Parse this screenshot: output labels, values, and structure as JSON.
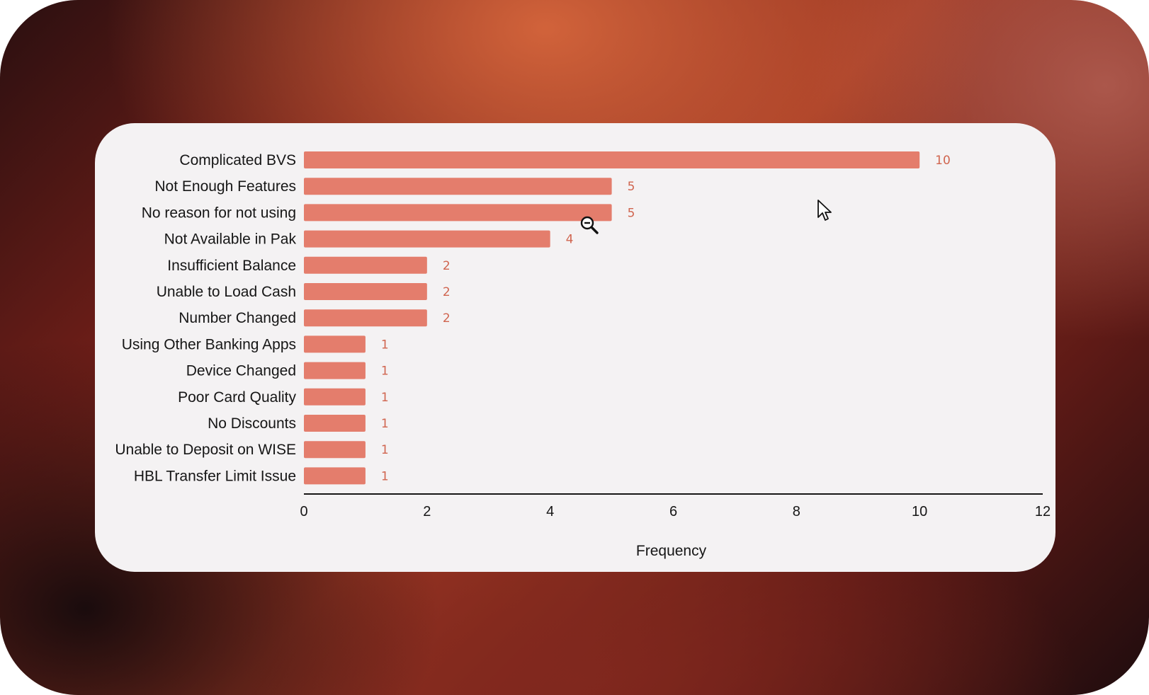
{
  "chart_data": {
    "type": "bar",
    "orientation": "horizontal",
    "categories": [
      "Complicated BVS",
      "Not Enough Features",
      "No reason for not using",
      "Not Available in Pak",
      "Insufficient Balance",
      "Unable to Load Cash",
      "Number Changed",
      "Using Other Banking Apps",
      "Device Changed",
      "Poor Card Quality",
      "No Discounts",
      "Unable to Deposit on WISE",
      "HBL Transfer Limit Issue"
    ],
    "values": [
      10,
      5,
      5,
      4,
      2,
      2,
      2,
      1,
      1,
      1,
      1,
      1,
      1
    ],
    "value_labels": [
      "10",
      "5",
      "5",
      "4",
      "2",
      "2",
      "2",
      "1",
      "1",
      "1",
      "1",
      "1",
      "1"
    ],
    "xlabel": "Frequency",
    "ylabel": "",
    "xlim": [
      0,
      12
    ],
    "xticks": [
      0,
      2,
      4,
      6,
      8,
      10,
      12
    ],
    "xtick_labels": [
      "0",
      "2",
      "4",
      "6",
      "8",
      "10",
      "12"
    ],
    "grid": false,
    "legend": "none"
  },
  "colors": {
    "bar": "#e47d6c",
    "value_label": "#d0654f",
    "card_background": "#f4f2f3",
    "axis": "#161616"
  },
  "icons": {
    "pointer": "arrow-cursor-icon",
    "zoom": "zoom-out-cursor-icon"
  }
}
